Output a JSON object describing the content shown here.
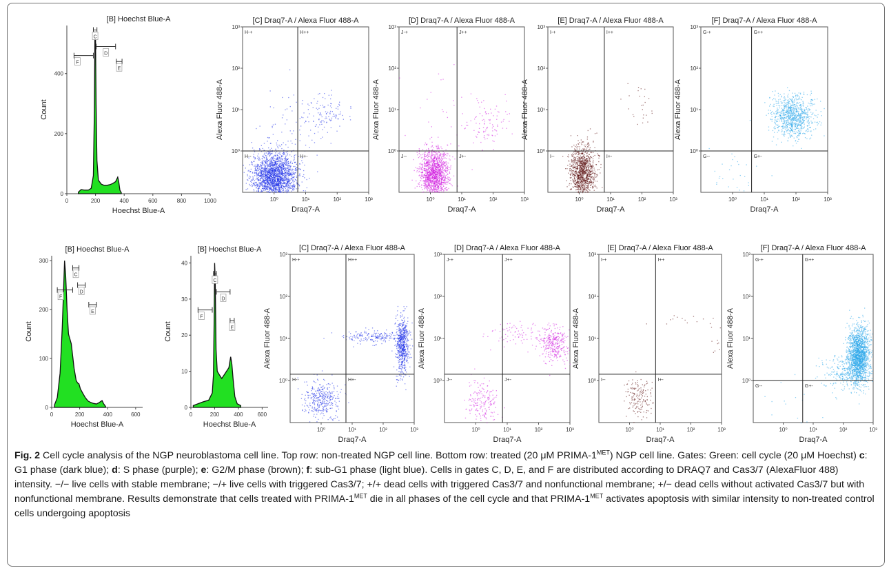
{
  "figure_label": "Fig. 2",
  "caption": {
    "title": "Cell cycle analysis of the NGP neuroblastoma cell line. Top row: non-treated NGP cell line. Bottom row: treated (20 μM PRIMA-1",
    "met1": "MET",
    "t1": ") NGP cell line. Gates: Green: cell cycle (20 μM Hoechst) ",
    "kc": "c",
    "tc": ": G1 phase (dark blue); ",
    "kd": "d",
    "td": ": S phase (purple); ",
    "ke": "e",
    "te": ": G2/M phase (brown); ",
    "kf": "f",
    "tf": ": sub-G1 phase (light blue). Cells in gates C, D, E, and F are distributed according to DRAQ7 and Cas3/7 (AlexaFluor 488) intensity. −/− live cells with stable membrane; −/+ live cells with triggered Cas3/7; +/+ dead cells with triggered Cas3/7 and nonfunctional membrane; +/− dead cells without activated Cas3/7 but with nonfunctional membrane. Results demonstrate that cells treated with PRIMA-1",
    "met2": "MET",
    "t2": " die in all phases of the cell cycle and that PRIMA-1",
    "met3": "MET",
    "t3": " activates apoptosis with similar intensity to non-treated control cells undergoing apoptosis"
  },
  "colors": {
    "histogram_fill": "#22e022",
    "g1_dark_blue": "#1c2ee8",
    "s_purple": "#d21ee0",
    "g2m_brown": "#5a0d0d",
    "subg1_light_blue": "#2aa6ea",
    "axis": "#444444"
  },
  "chart_data": [
    {
      "id": "top-hist",
      "type": "area",
      "title": "[B] Hoechst Blue-A",
      "xlabel": "Hoechst Blue-A",
      "ylabel": "Count",
      "xlim": [
        0,
        1000
      ],
      "ylim": [
        0,
        560
      ],
      "xticks": [
        0,
        200,
        400,
        600,
        800,
        1000
      ],
      "yticks": [
        0,
        200,
        400
      ],
      "curve": [
        [
          80,
          5
        ],
        [
          100,
          14
        ],
        [
          120,
          12
        ],
        [
          150,
          12
        ],
        [
          170,
          18
        ],
        [
          185,
          60
        ],
        [
          192,
          280
        ],
        [
          196,
          540
        ],
        [
          200,
          520
        ],
        [
          204,
          300
        ],
        [
          210,
          110
        ],
        [
          220,
          45
        ],
        [
          240,
          32
        ],
        [
          260,
          28
        ],
        [
          280,
          28
        ],
        [
          300,
          30
        ],
        [
          320,
          34
        ],
        [
          340,
          40
        ],
        [
          355,
          55
        ],
        [
          362,
          40
        ],
        [
          370,
          12
        ],
        [
          380,
          3
        ]
      ],
      "gates": [
        {
          "label": "C",
          "from": 185,
          "to": 210,
          "y": 545
        },
        {
          "label": "D",
          "from": 205,
          "to": 340,
          "y": 490
        },
        {
          "label": "E",
          "from": 345,
          "to": 385,
          "y": 440
        },
        {
          "label": "F",
          "from": 50,
          "to": 185,
          "y": 460
        }
      ]
    },
    {
      "id": "top-c",
      "type": "scatter",
      "title": "[C] Draq7-A / Alexa Fluor 488-A",
      "xlabel": "Draq7-A",
      "ylabel": "Alexa Fluor 488-A",
      "xlim": [
        -1,
        3
      ],
      "ylim": [
        -1,
        3
      ],
      "xticks": [
        "10⁰",
        "10¹",
        "10²",
        "10³"
      ],
      "yticks": [
        "10⁰",
        "10¹",
        "10²",
        "10³"
      ],
      "qx": 0.75,
      "qy": 0.0,
      "quadrants": [
        "H-+",
        "H++",
        "H--",
        "H+-"
      ],
      "color": "#1c2ee8",
      "clusters": [
        {
          "cx": 0.0,
          "cy": -0.6,
          "sx": 0.35,
          "sy": 0.28,
          "n": 2000
        },
        {
          "cx": 1.6,
          "cy": 0.9,
          "sx": 0.35,
          "sy": 0.2,
          "n": 100
        },
        {
          "cx": 0.5,
          "cy": 0.6,
          "sx": 0.6,
          "sy": 0.5,
          "n": 80
        }
      ]
    },
    {
      "id": "top-d",
      "type": "scatter",
      "title": "[D] Draq7-A / Alexa Fluor 488-A",
      "xlabel": "Draq7-A",
      "ylabel": "Alexa Fluor 488-A",
      "xlim": [
        -1,
        3
      ],
      "ylim": [
        -1,
        3
      ],
      "xticks": [
        "10⁰",
        "10¹",
        "10²",
        "10³"
      ],
      "yticks": [
        "10⁰",
        "10¹",
        "10²",
        "10³"
      ],
      "qx": 0.85,
      "qy": 0.0,
      "quadrants": [
        "J-+",
        "J++",
        "J--",
        "J+-"
      ],
      "color": "#d21ee0",
      "clusters": [
        {
          "cx": 0.1,
          "cy": -0.55,
          "sx": 0.22,
          "sy": 0.3,
          "n": 1400
        },
        {
          "cx": 1.9,
          "cy": 0.7,
          "sx": 0.35,
          "sy": 0.25,
          "n": 90
        },
        {
          "cx": 0.6,
          "cy": 0.8,
          "sx": 0.6,
          "sy": 0.5,
          "n": 40
        }
      ]
    },
    {
      "id": "top-e",
      "type": "scatter",
      "title": "[E] Draq7-A / Alexa Fluor 488-A",
      "xlabel": "Draq7-A",
      "ylabel": "Alexa Fluor 488-A",
      "xlim": [
        -1,
        3
      ],
      "ylim": [
        -1,
        3
      ],
      "xticks": [
        "10⁰",
        "10¹",
        "10²",
        "10³"
      ],
      "yticks": [
        "10⁰",
        "10¹",
        "10²",
        "10³"
      ],
      "qx": 0.8,
      "qy": 0.0,
      "quadrants": [
        "I-+",
        "I++",
        "I--",
        "I+-"
      ],
      "color": "#5a0d0d",
      "clusters": [
        {
          "cx": 0.1,
          "cy": -0.5,
          "sx": 0.2,
          "sy": 0.32,
          "n": 1100
        },
        {
          "cx": 1.9,
          "cy": 1.0,
          "sx": 0.3,
          "sy": 0.3,
          "n": 25
        }
      ]
    },
    {
      "id": "top-f",
      "type": "scatter",
      "title": "[F] Draq7-A / Alexa Fluor 488-A",
      "xlabel": "Draq7-A",
      "ylabel": "Alexa Fluor 488-A",
      "xlim": [
        -1,
        3
      ],
      "ylim": [
        -1,
        3
      ],
      "xticks": [
        "10⁰",
        "10¹",
        "10²",
        "10³"
      ],
      "yticks": [
        "10⁰",
        "10¹",
        "10²",
        "10³"
      ],
      "qx": 0.6,
      "qy": 0.0,
      "quadrants": [
        "G-+",
        "G++",
        "G--",
        "G+-"
      ],
      "color": "#2aa6ea",
      "clusters": [
        {
          "cx": 1.9,
          "cy": 0.85,
          "sx": 0.32,
          "sy": 0.25,
          "n": 900
        },
        {
          "cx": 0.0,
          "cy": -0.6,
          "sx": 0.4,
          "sy": 0.3,
          "n": 30
        }
      ]
    },
    {
      "id": "bot-hist1",
      "type": "area",
      "title": "[B] Hoechst Blue-A",
      "xlabel": "Hoechst Blue-A",
      "ylabel": "Count",
      "xlim": [
        0,
        650
      ],
      "ylim": [
        0,
        310
      ],
      "xticks": [
        0,
        200,
        400,
        600
      ],
      "yticks": [
        0,
        100,
        200,
        300
      ],
      "curve": [
        [
          20,
          5
        ],
        [
          40,
          20
        ],
        [
          60,
          70
        ],
        [
          75,
          160
        ],
        [
          85,
          240
        ],
        [
          92,
          300
        ],
        [
          100,
          270
        ],
        [
          110,
          200
        ],
        [
          120,
          150
        ],
        [
          130,
          140
        ],
        [
          140,
          130
        ],
        [
          150,
          105
        ],
        [
          160,
          80
        ],
        [
          175,
          55
        ],
        [
          185,
          50
        ],
        [
          195,
          48
        ],
        [
          205,
          38
        ],
        [
          220,
          30
        ],
        [
          240,
          20
        ],
        [
          260,
          13
        ],
        [
          280,
          10
        ],
        [
          300,
          8
        ],
        [
          320,
          7
        ],
        [
          340,
          10
        ],
        [
          360,
          14
        ],
        [
          370,
          8
        ],
        [
          385,
          2
        ]
      ],
      "gates": [
        {
          "label": "C",
          "from": 150,
          "to": 195,
          "y": 285
        },
        {
          "label": "D",
          "from": 185,
          "to": 240,
          "y": 250
        },
        {
          "label": "E",
          "from": 265,
          "to": 320,
          "y": 210
        },
        {
          "label": "F",
          "from": 40,
          "to": 150,
          "y": 240
        }
      ]
    },
    {
      "id": "bot-hist2",
      "type": "area",
      "title": "[B] Hoechst Blue-A",
      "xlabel": "Hoechst Blue-A",
      "ylabel": "Count",
      "xlim": [
        0,
        650
      ],
      "ylim": [
        0,
        42
      ],
      "xticks": [
        0,
        200,
        400,
        600
      ],
      "yticks": [
        0,
        10,
        20,
        30,
        40
      ],
      "curve": [
        [
          20,
          0.5
        ],
        [
          60,
          1
        ],
        [
          100,
          1.5
        ],
        [
          150,
          2
        ],
        [
          180,
          4
        ],
        [
          190,
          9
        ],
        [
          196,
          25
        ],
        [
          200,
          40
        ],
        [
          205,
          35
        ],
        [
          212,
          16
        ],
        [
          222,
          10
        ],
        [
          240,
          9
        ],
        [
          260,
          8
        ],
        [
          280,
          9
        ],
        [
          300,
          10
        ],
        [
          320,
          11
        ],
        [
          335,
          14
        ],
        [
          345,
          12
        ],
        [
          355,
          8
        ],
        [
          370,
          3
        ],
        [
          390,
          1
        ],
        [
          420,
          0.5
        ]
      ],
      "gates": [
        {
          "label": "C",
          "from": 190,
          "to": 215,
          "y": 37
        },
        {
          "label": "D",
          "from": 215,
          "to": 330,
          "y": 32
        },
        {
          "label": "E",
          "from": 330,
          "to": 365,
          "y": 24
        },
        {
          "label": "F",
          "from": 60,
          "to": 180,
          "y": 27
        }
      ]
    },
    {
      "id": "bot-c",
      "type": "scatter",
      "title": "[C] Draq7-A / Alexa Fluor 488-A",
      "xlabel": "Draq7-A",
      "ylabel": "Alexa Fluor 488-A",
      "xlim": [
        -1,
        3
      ],
      "ylim": [
        -1,
        3
      ],
      "xticks": [
        "10⁰",
        "10¹",
        "10²",
        "10³"
      ],
      "yticks": [
        "10⁰",
        "10¹",
        "10²",
        "10³"
      ],
      "qx": 0.8,
      "qy": 0.15,
      "quadrants": [
        "H-+",
        "H++",
        "H--",
        "H+-"
      ],
      "color": "#1c2ee8",
      "clusters": [
        {
          "cx": 0.0,
          "cy": -0.45,
          "sx": 0.3,
          "sy": 0.22,
          "n": 350
        },
        {
          "cx": 2.6,
          "cy": 0.85,
          "sx": 0.1,
          "sy": 0.35,
          "n": 600
        },
        {
          "cx": 1.7,
          "cy": 1.05,
          "sx": 0.6,
          "sy": 0.08,
          "n": 200
        }
      ]
    },
    {
      "id": "bot-d",
      "type": "scatter",
      "title": "[D] Draq7-A / Alexa Fluor 488-A",
      "xlabel": "Draq7-A",
      "ylabel": "Alexa Fluor 488-A",
      "xlim": [
        -1,
        3
      ],
      "ylim": [
        -1,
        3
      ],
      "xticks": [
        "10⁰",
        "10¹",
        "10²",
        "10³"
      ],
      "yticks": [
        "10⁰",
        "10¹",
        "10²",
        "10³"
      ],
      "qx": 0.85,
      "qy": 0.15,
      "quadrants": [
        "J-+",
        "J++",
        "J--",
        "J+-"
      ],
      "color": "#d21ee0",
      "clusters": [
        {
          "cx": 0.2,
          "cy": -0.5,
          "sx": 0.25,
          "sy": 0.25,
          "n": 180
        },
        {
          "cx": 2.5,
          "cy": 0.85,
          "sx": 0.22,
          "sy": 0.22,
          "n": 300
        },
        {
          "cx": 1.4,
          "cy": 1.1,
          "sx": 0.6,
          "sy": 0.15,
          "n": 100
        }
      ]
    },
    {
      "id": "bot-e",
      "type": "scatter",
      "title": "[E] Draq7-A / Alexa Fluor 488-A",
      "xlabel": "Draq7-A",
      "ylabel": "Alexa Fluor 488-A",
      "xlim": [
        -1,
        3
      ],
      "ylim": [
        -1,
        3
      ],
      "xticks": [
        "10⁰",
        "10¹",
        "10²",
        "10³"
      ],
      "yticks": [
        "10⁰",
        "10¹",
        "10²",
        "10³"
      ],
      "qx": 0.85,
      "qy": 0.15,
      "quadrants": [
        "I-+",
        "I++",
        "I--",
        "I+-"
      ],
      "color": "#5a0d0d",
      "clusters": [
        {
          "cx": 0.3,
          "cy": -0.45,
          "sx": 0.22,
          "sy": 0.25,
          "n": 160
        },
        {
          "cx": 1.8,
          "cy": 1.4,
          "sx": 0.5,
          "sy": 0.1,
          "n": 15
        },
        {
          "cx": 2.8,
          "cy": 0.9,
          "sx": 0.1,
          "sy": 0.2,
          "n": 8
        }
      ]
    },
    {
      "id": "bot-f",
      "type": "scatter",
      "title": "[F] Draq7-A / Alexa Fluor 488-A",
      "xlabel": "Draq7-A",
      "ylabel": "Alexa Fluor 488-A",
      "xlim": [
        -1,
        3
      ],
      "ylim": [
        -1,
        3
      ],
      "xticks": [
        "10⁰",
        "10¹",
        "10²",
        "10³"
      ],
      "yticks": [
        "10⁰",
        "10¹",
        "10²",
        "10³"
      ],
      "qx": 0.65,
      "qy": 0.0,
      "quadrants": [
        "G-+",
        "G++",
        "G--",
        "G+-"
      ],
      "color": "#2aa6ea",
      "clusters": [
        {
          "cx": 2.5,
          "cy": 0.6,
          "sx": 0.18,
          "sy": 0.35,
          "n": 1800
        },
        {
          "cx": 1.9,
          "cy": 0.2,
          "sx": 0.35,
          "sy": 0.2,
          "n": 200
        },
        {
          "cx": 0.5,
          "cy": -0.5,
          "sx": 0.5,
          "sy": 0.4,
          "n": 15
        }
      ]
    }
  ]
}
